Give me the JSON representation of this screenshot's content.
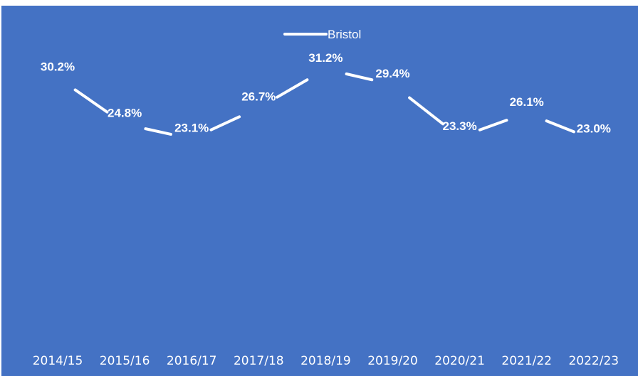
{
  "chart_data": {
    "type": "line",
    "title": "",
    "xlabel": "",
    "ylabel": "",
    "categories": [
      "2014/15",
      "2015/16",
      "2016/17",
      "2017/18",
      "2018/19",
      "2019/20",
      "2020/21",
      "2021/22",
      "2022/23"
    ],
    "series": [
      {
        "name": "Bristol",
        "values": [
          30.2,
          24.8,
          23.1,
          26.7,
          31.2,
          29.4,
          23.3,
          26.1,
          23.0
        ],
        "labels": [
          "30.2%",
          "24.8%",
          "23.1%",
          "26.7%",
          "31.2%",
          "29.4%",
          "23.3%",
          "26.1%",
          "23.0%"
        ]
      }
    ],
    "ylim": [
      0,
      37
    ],
    "grid": false,
    "legend_position": "top",
    "drop_lines": true,
    "colors": {
      "background": "#4472C4",
      "line": "#ffffff",
      "text": "#ffffff"
    }
  }
}
